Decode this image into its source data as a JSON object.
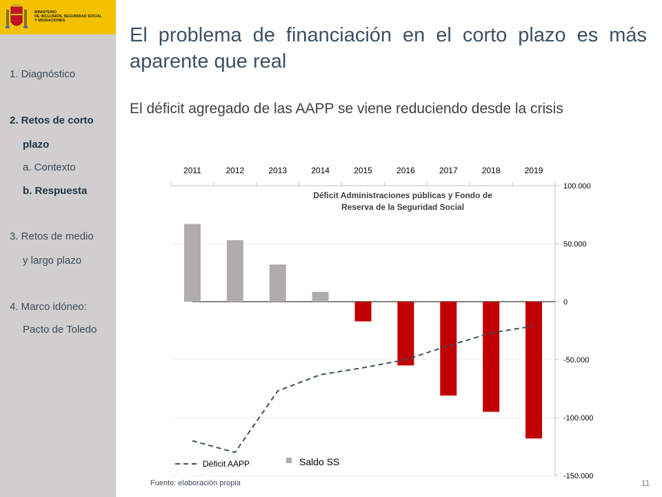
{
  "logo": {
    "ministry_lines": [
      "MINISTERIO",
      "DE INCLUSIÓN, SEGURIDAD SOCIAL",
      "Y MIGRACIONES"
    ]
  },
  "nav": {
    "item1": "1. Diagnóstico",
    "item2a": "2. Retos de corto",
    "item2b": "plazo",
    "item2_sub_a": "a. Contexto",
    "item2_sub_b": "b. Respuesta",
    "item3a": "3. Retos de medio",
    "item3b": "y largo plazo",
    "item4a": "4. Marco idóneo:",
    "item4b": "Pacto de Toledo"
  },
  "title": "El problema de financiación en el corto plazo es más aparente que real",
  "subtitle": "El déficit agregado de las AAPP se viene reduciendo desde la crisis",
  "source": "Fuente:  elaboración propia",
  "page_number": "11",
  "colors": {
    "positive_bar": "#b1acab",
    "negative_bar": "#c00000",
    "line": "#3d4f63",
    "sidebar": "#d0cece",
    "logo_bg": "#f2c200"
  },
  "chart_data": {
    "type": "bar",
    "title_lines": [
      "Déficit Administraciones públicas y Fondo de",
      "Reserva de la Seguridad Social"
    ],
    "categories": [
      "2011",
      "2012",
      "2013",
      "2014",
      "2015",
      "2016",
      "2017",
      "2018",
      "2019"
    ],
    "ylim": [
      -150000,
      100000
    ],
    "yticks": [
      100000,
      50000,
      0,
      -50000,
      -100000,
      -150000
    ],
    "ytick_labels": [
      "100.000",
      "50.000",
      "0",
      "-50.000",
      "-100.000",
      "-150.000"
    ],
    "y_axis_position": "right",
    "x_axis_position": "top",
    "grid": true,
    "legend_placement": "bottom-left",
    "series": [
      {
        "name": "Saldo SS",
        "kind": "bar",
        "values": [
          67000,
          53000,
          32000,
          8500,
          -17000,
          -55000,
          -81000,
          -95000,
          -118000
        ]
      },
      {
        "name": "Déficit AAPP",
        "kind": "line",
        "style": "dashed",
        "values": [
          -120000,
          -130000,
          -77000,
          -63000,
          -57000,
          -50000,
          -38000,
          -27000,
          -21000
        ]
      }
    ]
  }
}
